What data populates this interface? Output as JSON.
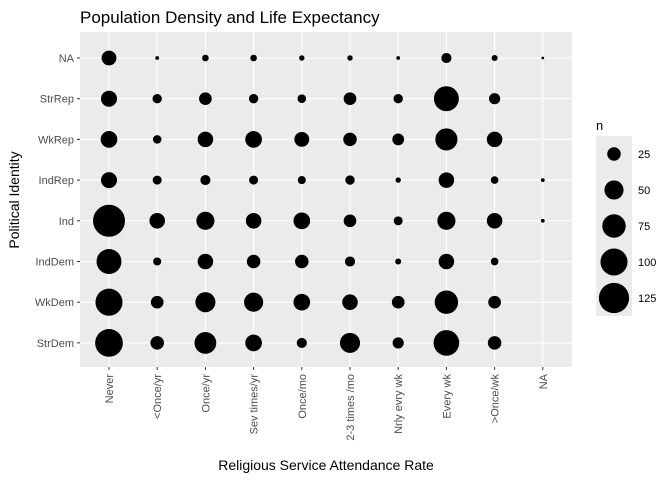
{
  "chart_data": {
    "type": "scatter",
    "title": "Population Density and Life Expectancy",
    "xlabel": "Religious Service Attendance Rate",
    "ylabel": "Political Identity",
    "x_categories": [
      "Never",
      "<Once/yr",
      "Once/yr",
      "Sev times/yr",
      "Once/mo",
      "2-3 times /mo",
      "Nrly evry wk",
      "Every wk",
      ">Once/wk",
      "NA"
    ],
    "y_categories": [
      "StrDem",
      "WkDem",
      "IndDem",
      "Ind",
      "IndRep",
      "WkRep",
      "StrRep",
      "NA"
    ],
    "size_variable": "n",
    "points": [
      {
        "x": "Never",
        "y": "NA",
        "n": 30
      },
      {
        "x": "<Once/yr",
        "y": "NA",
        "n": 2
      },
      {
        "x": "Once/yr",
        "y": "NA",
        "n": 6
      },
      {
        "x": "Sev times/yr",
        "y": "NA",
        "n": 6
      },
      {
        "x": "Once/mo",
        "y": "NA",
        "n": 4
      },
      {
        "x": "2-3 times /mo",
        "y": "NA",
        "n": 4
      },
      {
        "x": "Nrly evry wk",
        "y": "NA",
        "n": 2
      },
      {
        "x": "Every wk",
        "y": "NA",
        "n": 14
      },
      {
        "x": ">Once/wk",
        "y": "NA",
        "n": 5
      },
      {
        "x": "NA",
        "y": "NA",
        "n": 1
      },
      {
        "x": "Never",
        "y": "StrRep",
        "n": 35
      },
      {
        "x": "<Once/yr",
        "y": "StrRep",
        "n": 12
      },
      {
        "x": "Once/yr",
        "y": "StrRep",
        "n": 22
      },
      {
        "x": "Sev times/yr",
        "y": "StrRep",
        "n": 12
      },
      {
        "x": "Once/mo",
        "y": "StrRep",
        "n": 10
      },
      {
        "x": "2-3 times /mo",
        "y": "StrRep",
        "n": 22
      },
      {
        "x": "Nrly evry wk",
        "y": "StrRep",
        "n": 12
      },
      {
        "x": "Every wk",
        "y": "StrRep",
        "n": 85
      },
      {
        "x": ">Once/wk",
        "y": "StrRep",
        "n": 17
      },
      {
        "x": "Never",
        "y": "WkRep",
        "n": 38
      },
      {
        "x": "<Once/yr",
        "y": "WkRep",
        "n": 10
      },
      {
        "x": "Once/yr",
        "y": "WkRep",
        "n": 33
      },
      {
        "x": "Sev times/yr",
        "y": "WkRep",
        "n": 38
      },
      {
        "x": "Once/mo",
        "y": "WkRep",
        "n": 30
      },
      {
        "x": "2-3 times /mo",
        "y": "WkRep",
        "n": 25
      },
      {
        "x": "Nrly evry wk",
        "y": "WkRep",
        "n": 19
      },
      {
        "x": "Every wk",
        "y": "WkRep",
        "n": 67
      },
      {
        "x": ">Once/wk",
        "y": "WkRep",
        "n": 33
      },
      {
        "x": "Never",
        "y": "IndRep",
        "n": 35
      },
      {
        "x": "<Once/yr",
        "y": "IndRep",
        "n": 11
      },
      {
        "x": "Once/yr",
        "y": "IndRep",
        "n": 14
      },
      {
        "x": "Sev times/yr",
        "y": "IndRep",
        "n": 11
      },
      {
        "x": "Once/mo",
        "y": "IndRep",
        "n": 9
      },
      {
        "x": "2-3 times /mo",
        "y": "IndRep",
        "n": 12
      },
      {
        "x": "Nrly evry wk",
        "y": "IndRep",
        "n": 4
      },
      {
        "x": "Every wk",
        "y": "IndRep",
        "n": 33
      },
      {
        "x": ">Once/wk",
        "y": "IndRep",
        "n": 8
      },
      {
        "x": "NA",
        "y": "IndRep",
        "n": 2
      },
      {
        "x": "Never",
        "y": "Ind",
        "n": 140
      },
      {
        "x": "<Once/yr",
        "y": "Ind",
        "n": 33
      },
      {
        "x": "Once/yr",
        "y": "Ind",
        "n": 45
      },
      {
        "x": "Sev times/yr",
        "y": "Ind",
        "n": 33
      },
      {
        "x": "Once/mo",
        "y": "Ind",
        "n": 38
      },
      {
        "x": "2-3 times /mo",
        "y": "Ind",
        "n": 22
      },
      {
        "x": "Nrly evry wk",
        "y": "Ind",
        "n": 11
      },
      {
        "x": "Every wk",
        "y": "Ind",
        "n": 45
      },
      {
        "x": ">Once/wk",
        "y": "Ind",
        "n": 33
      },
      {
        "x": "NA",
        "y": "Ind",
        "n": 2
      },
      {
        "x": "Never",
        "y": "IndDem",
        "n": 85
      },
      {
        "x": "<Once/yr",
        "y": "IndDem",
        "n": 9
      },
      {
        "x": "Once/yr",
        "y": "IndDem",
        "n": 33
      },
      {
        "x": "Sev times/yr",
        "y": "IndDem",
        "n": 25
      },
      {
        "x": "Once/mo",
        "y": "IndDem",
        "n": 25
      },
      {
        "x": "2-3 times /mo",
        "y": "IndDem",
        "n": 14
      },
      {
        "x": "Nrly evry wk",
        "y": "IndDem",
        "n": 5
      },
      {
        "x": "Every wk",
        "y": "IndDem",
        "n": 33
      },
      {
        "x": ">Once/wk",
        "y": "IndDem",
        "n": 8
      },
      {
        "x": "Never",
        "y": "WkDem",
        "n": 100
      },
      {
        "x": "<Once/yr",
        "y": "WkDem",
        "n": 22
      },
      {
        "x": "Once/yr",
        "y": "WkDem",
        "n": 55
      },
      {
        "x": "Sev times/yr",
        "y": "WkDem",
        "n": 50
      },
      {
        "x": "Once/mo",
        "y": "WkDem",
        "n": 38
      },
      {
        "x": "2-3 times /mo",
        "y": "WkDem",
        "n": 33
      },
      {
        "x": "Nrly evry wk",
        "y": "WkDem",
        "n": 22
      },
      {
        "x": "Every wk",
        "y": "WkDem",
        "n": 75
      },
      {
        "x": ">Once/wk",
        "y": "WkDem",
        "n": 22
      },
      {
        "x": "Never",
        "y": "StrDem",
        "n": 105
      },
      {
        "x": "<Once/yr",
        "y": "StrDem",
        "n": 25
      },
      {
        "x": "Once/yr",
        "y": "StrDem",
        "n": 65
      },
      {
        "x": "Sev times/yr",
        "y": "StrDem",
        "n": 38
      },
      {
        "x": "Once/mo",
        "y": "StrDem",
        "n": 14
      },
      {
        "x": "2-3 times /mo",
        "y": "StrDem",
        "n": 55
      },
      {
        "x": "Nrly evry wk",
        "y": "StrDem",
        "n": 17
      },
      {
        "x": "Every wk",
        "y": "StrDem",
        "n": 90
      },
      {
        "x": ">Once/wk",
        "y": "StrDem",
        "n": 25
      }
    ],
    "legend": {
      "title": "n",
      "position": "right",
      "breaks": [
        25,
        50,
        75,
        100,
        125
      ],
      "labels": [
        "25",
        "50",
        "75",
        "100",
        "125"
      ]
    },
    "size_range_max_n": 140,
    "grid": true,
    "colors": {
      "panel_background": "#ebebeb",
      "grid_line": "#ffffff",
      "point": "#000000",
      "tick_label": "#4d4d4d",
      "tick_mark": "#333333"
    }
  }
}
